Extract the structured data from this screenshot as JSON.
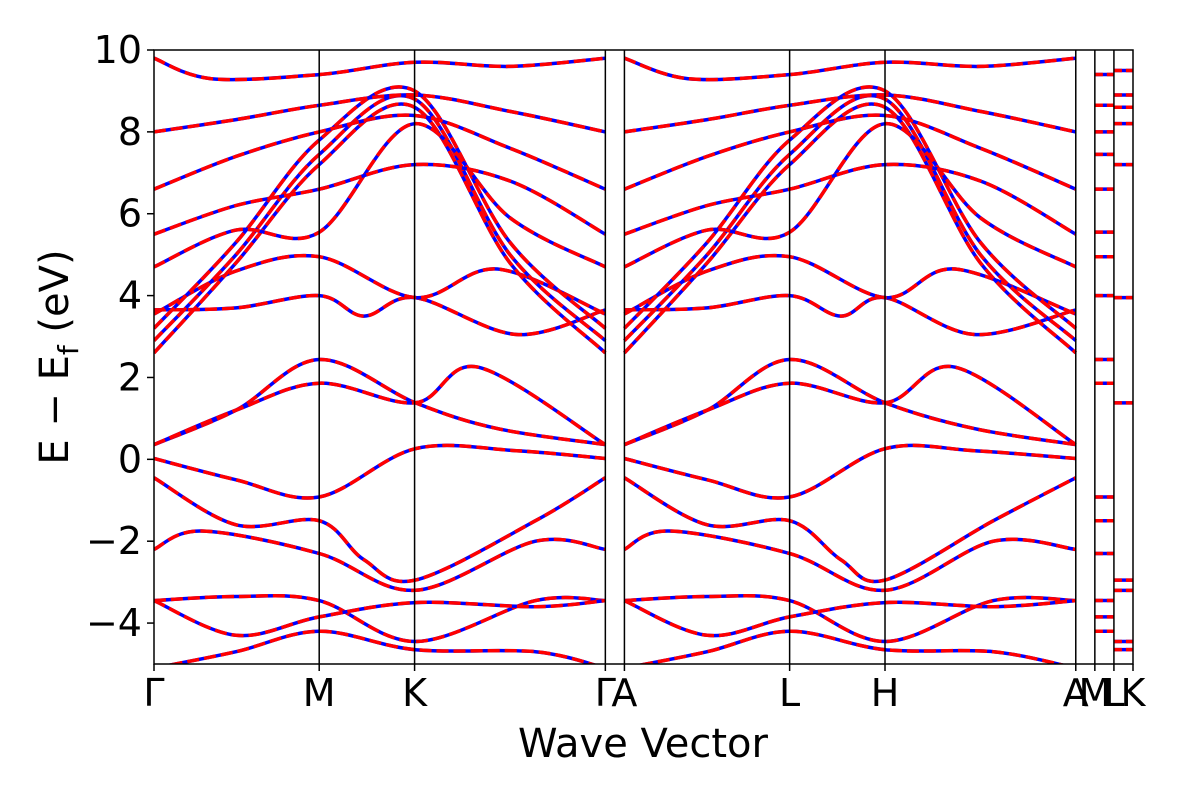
{
  "chart_data": {
    "type": "line",
    "title": "",
    "xlabel": "Wave Vector",
    "ylabel_main": "E − E",
    "ylabel_sub": "f",
    "ylabel_unit": " (eV)",
    "ylim": [
      -5,
      10
    ],
    "yticks": [
      "−4",
      "−2",
      "0",
      "2",
      "4",
      "6",
      "8",
      "10"
    ],
    "ytick_values": [
      -4,
      -2,
      0,
      2,
      4,
      6,
      8,
      10
    ],
    "grid": false,
    "legend": "none",
    "high_symmetry_path": {
      "labels": [
        "Γ",
        "M",
        "K",
        "Γ",
        "A",
        "L",
        "H",
        "A",
        "M",
        "L",
        "K"
      ],
      "positions": [
        0.0,
        0.866,
        1.366,
        2.366,
        2.466,
        3.332,
        3.832,
        4.832,
        4.932,
        5.032,
        5.132
      ],
      "dividers": [
        0.866,
        1.366,
        2.366,
        2.466,
        3.332,
        3.832,
        4.832,
        4.932,
        5.032
      ]
    },
    "series": [
      {
        "style": "solid",
        "color": "#0000ff"
      },
      {
        "style": "dashed",
        "color": "#ff0000"
      }
    ],
    "bands": [
      {
        "x": [
          0,
          0.43,
          0.866,
          1.37,
          1.9,
          2.366
        ],
        "y": [
          0.02,
          -0.5,
          -0.92,
          0.26,
          0.21,
          0.02
        ]
      },
      {
        "x": [
          0,
          0.43,
          0.866,
          1.37,
          1.8,
          2.366
        ],
        "y": [
          0.36,
          1.2,
          2.44,
          1.38,
          0.75,
          0.36
        ]
      },
      {
        "x": [
          0,
          0.43,
          0.866,
          1.37,
          1.7,
          2.366
        ],
        "y": [
          0.36,
          1.2,
          1.86,
          1.38,
          2.25,
          0.36
        ]
      },
      {
        "x": [
          0,
          0.43,
          0.866,
          1.1,
          1.37,
          2.0,
          2.366
        ],
        "y": [
          -0.45,
          -1.6,
          -1.5,
          -2.45,
          -2.95,
          -1.5,
          -0.45
        ]
      },
      {
        "x": [
          0,
          0.25,
          0.866,
          1.37,
          2.0,
          2.366
        ],
        "y": [
          -2.2,
          -1.75,
          -2.3,
          -3.2,
          -2.0,
          -2.2
        ]
      },
      {
        "x": [
          0,
          0.43,
          0.866,
          1.37,
          2.0,
          2.366
        ],
        "y": [
          -3.45,
          -3.35,
          -3.45,
          -4.45,
          -3.45,
          -3.45
        ]
      },
      {
        "x": [
          0,
          0.43,
          0.866,
          1.37,
          2.0,
          2.366
        ],
        "y": [
          -3.45,
          -4.3,
          -3.85,
          -3.5,
          -3.6,
          -3.45
        ]
      },
      {
        "x": [
          0,
          0.43,
          0.866,
          1.37,
          2.0,
          2.366
        ],
        "y": [
          -5.1,
          -4.7,
          -4.2,
          -4.65,
          -4.7,
          -5.1
        ]
      },
      {
        "x": [
          0,
          0.43,
          0.866,
          1.1,
          1.37,
          1.9,
          2.366
        ],
        "y": [
          3.65,
          3.7,
          4.0,
          3.5,
          3.95,
          3.05,
          3.65
        ]
      },
      {
        "x": [
          0,
          0.43,
          0.866,
          1.37,
          1.8,
          2.366
        ],
        "y": [
          3.55,
          4.6,
          4.95,
          3.95,
          4.65,
          3.55
        ]
      },
      {
        "x": [
          0,
          0.43,
          0.866,
          1.366,
          1.866,
          2.366
        ],
        "y": [
          2.6,
          4.8,
          7.2,
          8.6,
          4.8,
          2.6
        ]
      },
      {
        "x": [
          0,
          0.43,
          0.866,
          1.366,
          1.866,
          2.366
        ],
        "y": [
          2.9,
          5.0,
          7.45,
          8.8,
          5.0,
          2.9
        ]
      },
      {
        "x": [
          0,
          0.43,
          0.866,
          1.366,
          1.866,
          2.366
        ],
        "y": [
          3.2,
          5.3,
          7.8,
          9.0,
          5.3,
          3.2
        ]
      },
      {
        "x": [
          0,
          0.43,
          0.866,
          1.366,
          1.866,
          2.366
        ],
        "y": [
          4.7,
          5.6,
          5.55,
          8.2,
          5.9,
          4.7
        ]
      },
      {
        "x": [
          0,
          0.43,
          0.866,
          1.366,
          1.866,
          2.366
        ],
        "y": [
          5.5,
          6.2,
          6.6,
          7.2,
          6.8,
          5.5
        ]
      },
      {
        "x": [
          0,
          0.43,
          0.866,
          1.366,
          1.866,
          2.366
        ],
        "y": [
          6.6,
          7.4,
          8.0,
          8.4,
          7.6,
          6.6
        ]
      },
      {
        "x": [
          0,
          0.43,
          0.866,
          1.366,
          1.866,
          2.366
        ],
        "y": [
          8.0,
          8.3,
          8.65,
          8.9,
          8.5,
          8.0
        ]
      },
      {
        "x": [
          0,
          0.3,
          0.866,
          1.366,
          1.866,
          2.366
        ],
        "y": [
          9.8,
          9.3,
          9.4,
          9.7,
          9.6,
          9.8
        ]
      },
      {
        "x": [
          2.466,
          2.9,
          3.332,
          3.832,
          4.3,
          4.832
        ],
        "y": [
          0.02,
          -0.5,
          -0.92,
          0.26,
          0.21,
          0.02
        ]
      },
      {
        "x": [
          2.466,
          2.9,
          3.332,
          3.832,
          4.3,
          4.832
        ],
        "y": [
          0.36,
          1.2,
          2.44,
          1.38,
          0.75,
          0.36
        ]
      },
      {
        "x": [
          2.466,
          2.9,
          3.332,
          3.832,
          4.2,
          4.832
        ],
        "y": [
          0.36,
          1.2,
          1.86,
          1.38,
          2.25,
          0.36
        ]
      },
      {
        "x": [
          2.466,
          2.9,
          3.332,
          3.6,
          3.832,
          4.4,
          4.832
        ],
        "y": [
          -0.45,
          -1.6,
          -1.5,
          -2.45,
          -2.95,
          -1.5,
          -0.45
        ]
      },
      {
        "x": [
          2.466,
          2.7,
          3.332,
          3.832,
          4.4,
          4.832
        ],
        "y": [
          -2.2,
          -1.75,
          -2.3,
          -3.2,
          -2.0,
          -2.2
        ]
      },
      {
        "x": [
          2.466,
          2.9,
          3.332,
          3.832,
          4.4,
          4.832
        ],
        "y": [
          -3.45,
          -3.35,
          -3.45,
          -4.45,
          -3.45,
          -3.45
        ]
      },
      {
        "x": [
          2.466,
          2.9,
          3.332,
          3.832,
          4.4,
          4.832
        ],
        "y": [
          -3.45,
          -4.3,
          -3.85,
          -3.5,
          -3.6,
          -3.45
        ]
      },
      {
        "x": [
          2.466,
          2.9,
          3.332,
          3.832,
          4.4,
          4.832
        ],
        "y": [
          -5.1,
          -4.7,
          -4.2,
          -4.65,
          -4.7,
          -5.1
        ]
      },
      {
        "x": [
          2.466,
          2.9,
          3.332,
          3.6,
          3.832,
          4.3,
          4.832
        ],
        "y": [
          3.65,
          3.7,
          4.0,
          3.5,
          3.95,
          3.05,
          3.65
        ]
      },
      {
        "x": [
          2.466,
          2.9,
          3.332,
          3.832,
          4.2,
          4.832
        ],
        "y": [
          3.55,
          4.6,
          4.95,
          3.95,
          4.65,
          3.55
        ]
      },
      {
        "x": [
          2.466,
          2.9,
          3.332,
          3.832,
          4.332,
          4.832
        ],
        "y": [
          2.6,
          4.8,
          7.2,
          8.6,
          4.8,
          2.6
        ]
      },
      {
        "x": [
          2.466,
          2.9,
          3.332,
          3.832,
          4.332,
          4.832
        ],
        "y": [
          2.9,
          5.0,
          7.45,
          8.8,
          5.0,
          2.9
        ]
      },
      {
        "x": [
          2.466,
          2.9,
          3.332,
          3.832,
          4.332,
          4.832
        ],
        "y": [
          3.2,
          5.3,
          7.8,
          9.0,
          5.3,
          3.2
        ]
      },
      {
        "x": [
          2.466,
          2.9,
          3.332,
          3.832,
          4.332,
          4.832
        ],
        "y": [
          4.7,
          5.6,
          5.55,
          8.2,
          5.9,
          4.7
        ]
      },
      {
        "x": [
          2.466,
          2.9,
          3.332,
          3.832,
          4.332,
          4.832
        ],
        "y": [
          5.5,
          6.2,
          6.6,
          7.2,
          6.8,
          5.5
        ]
      },
      {
        "x": [
          2.466,
          2.9,
          3.332,
          3.832,
          4.332,
          4.832
        ],
        "y": [
          6.6,
          7.4,
          8.0,
          8.4,
          7.6,
          6.6
        ]
      },
      {
        "x": [
          2.466,
          2.9,
          3.332,
          3.832,
          4.332,
          4.832
        ],
        "y": [
          8.0,
          8.3,
          8.65,
          8.9,
          8.5,
          8.0
        ]
      },
      {
        "x": [
          2.466,
          2.8,
          3.332,
          3.832,
          4.332,
          4.832
        ],
        "y": [
          9.8,
          9.3,
          9.4,
          9.7,
          9.6,
          9.8
        ]
      }
    ],
    "flat_segments": [
      {
        "x": [
          4.932,
          5.032
        ],
        "levels": [
          -4.2,
          -3.85,
          -3.45,
          -2.3,
          -1.5,
          -0.92,
          1.86,
          2.44,
          4.0,
          4.95,
          5.55,
          6.6,
          7.45,
          8.0,
          8.65,
          9.4
        ]
      },
      {
        "x": [
          5.032,
          5.132
        ],
        "levels": [
          -4.65,
          -4.45,
          -3.2,
          -2.95,
          1.38,
          3.95,
          7.2,
          8.2,
          8.6,
          8.9,
          9.5
        ]
      }
    ]
  }
}
